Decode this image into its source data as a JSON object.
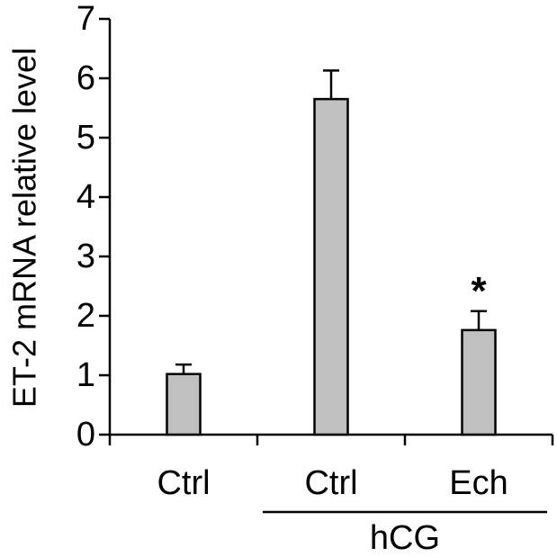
{
  "chart_data": {
    "type": "bar",
    "title": "",
    "xlabel": "",
    "ylabel": "ET-2 mRNA relative level",
    "ylim": [
      0,
      7
    ],
    "yticks": [
      0,
      1,
      2,
      3,
      4,
      5,
      6,
      7
    ],
    "grid": false,
    "legend": "none",
    "categories": [
      "Ctrl",
      "Ctrl",
      "Ech"
    ],
    "values": [
      1.02,
      5.65,
      1.76
    ],
    "errors": [
      0.16,
      0.48,
      0.32
    ],
    "annotations": [
      "",
      "",
      "*"
    ],
    "groups": [
      {
        "label": "hCG",
        "from_category": 1,
        "to_category": 2
      }
    ],
    "colors": {
      "bar_fill": "#c0c0c0",
      "bar_stroke": "#000000",
      "axis": "#000000"
    }
  }
}
